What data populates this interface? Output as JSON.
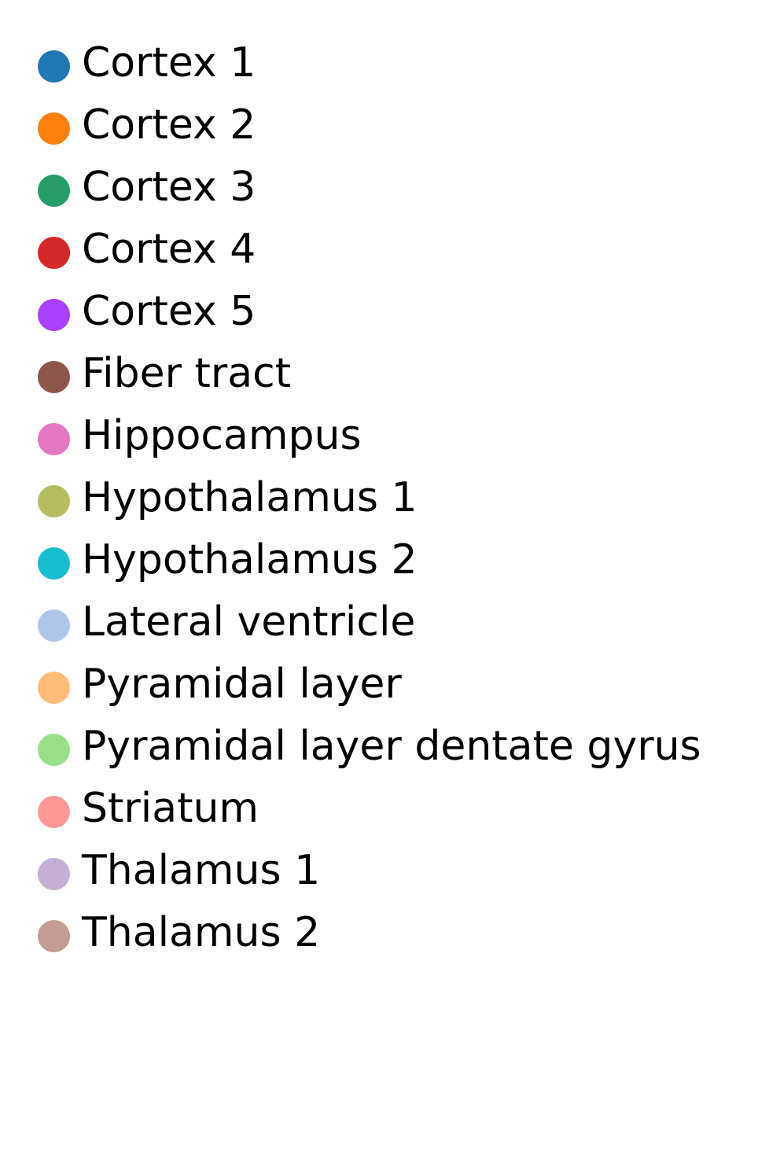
{
  "chart_data": {
    "type": "scatter",
    "title": "",
    "legend_placement": "top-left",
    "series": [
      {
        "name": "Cortex 1",
        "color": "#1f77b4"
      },
      {
        "name": "Cortex 2",
        "color": "#ff7f0e"
      },
      {
        "name": "Cortex 3",
        "color": "#279e68"
      },
      {
        "name": "Cortex 4",
        "color": "#d62728"
      },
      {
        "name": "Cortex 5",
        "color": "#aa40fc"
      },
      {
        "name": "Fiber tract",
        "color": "#8c564b"
      },
      {
        "name": "Hippocampus",
        "color": "#e377c2"
      },
      {
        "name": "Hypothalamus 1",
        "color": "#b5bd61"
      },
      {
        "name": "Hypothalamus 2",
        "color": "#17becf"
      },
      {
        "name": "Lateral ventricle",
        "color": "#aec7e8"
      },
      {
        "name": "Pyramidal layer",
        "color": "#ffbb78"
      },
      {
        "name": "Pyramidal layer dentate gyrus",
        "color": "#98df8a"
      },
      {
        "name": "Striatum",
        "color": "#ff9896"
      },
      {
        "name": "Thalamus 1",
        "color": "#c5b0d5"
      },
      {
        "name": "Thalamus 2",
        "color": "#c49c94"
      }
    ]
  }
}
